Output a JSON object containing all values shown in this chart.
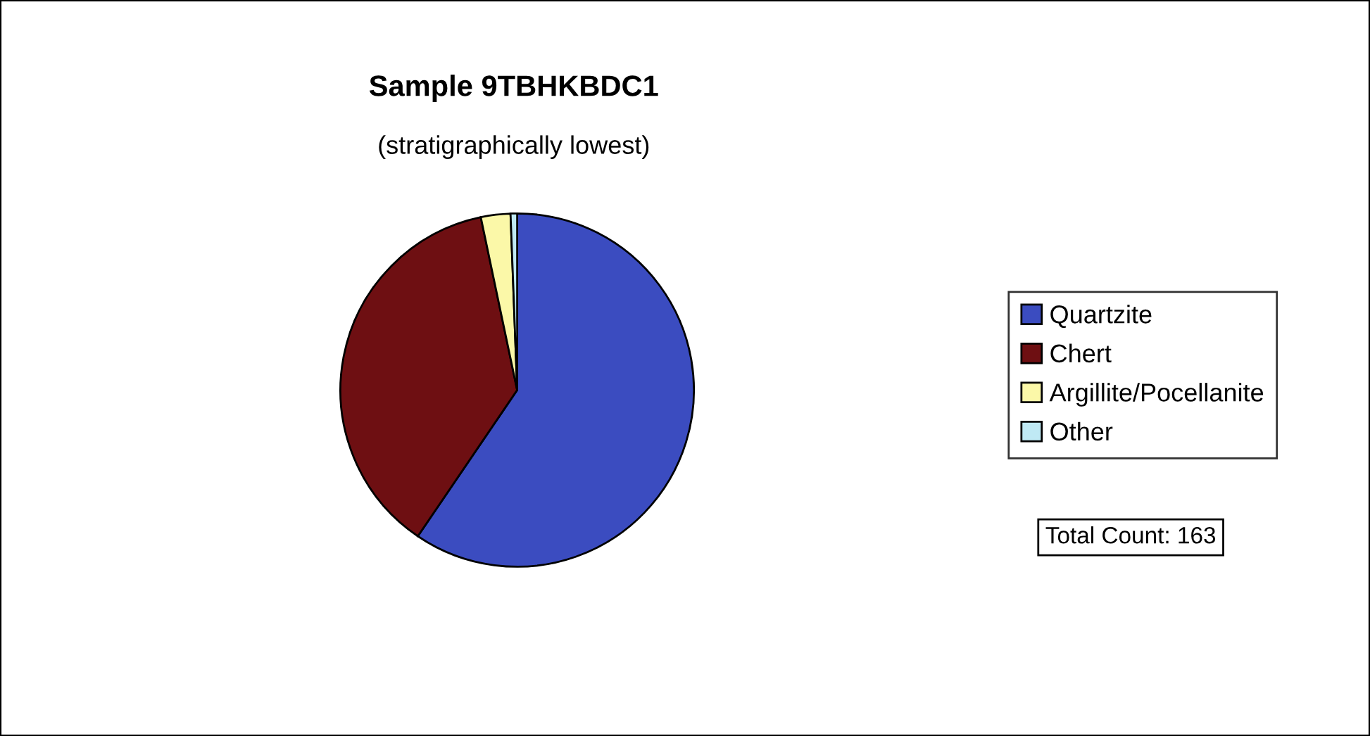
{
  "chart_data": {
    "type": "pie",
    "title": "Sample 9TBHKBDC1",
    "subtitle": "(stratigraphically lowest)",
    "categories": [
      "Quartzite",
      "Chert",
      "Argillite/Pocellanite",
      "Other"
    ],
    "values": [
      59.5,
      37.2,
      2.7,
      0.6
    ],
    "colors": [
      "#3b4cc0",
      "#6e0f12",
      "#fbf8a8",
      "#bfe9f4"
    ],
    "legend": "right",
    "annotations": [
      "Total Count: 163"
    ]
  }
}
